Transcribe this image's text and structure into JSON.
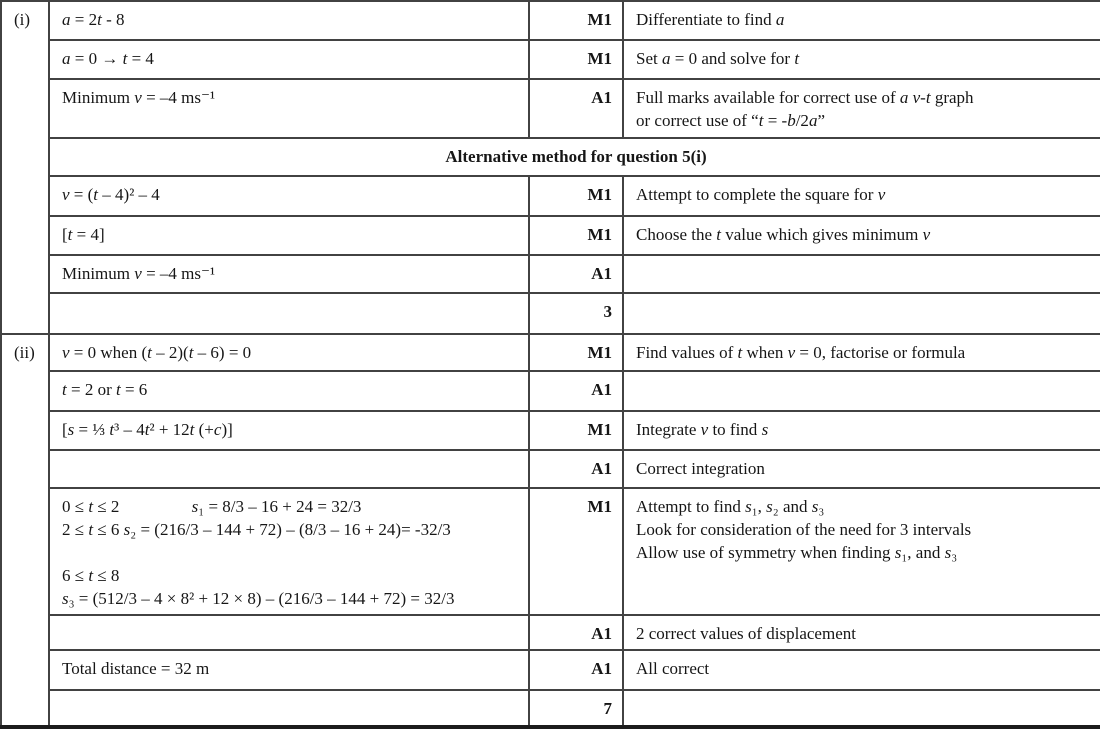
{
  "marking_table": {
    "part_label_i": "(i)",
    "part_label_ii": "(ii)",
    "alt_header": "Alternative method for question 5(i)",
    "part_i_rows": [
      {
        "work": "a = 2t - 8",
        "mark": "M1",
        "comment": "Differentiate to find a"
      },
      {
        "work": "a = 0 → t = 4",
        "mark": "M1",
        "comment": "Set a = 0 and solve for t"
      },
      {
        "work": "Minimum v = –4 ms⁻¹",
        "mark": "A1",
        "comment": "Full marks available for correct use of a v-t graph\nor correct use of “t = -b/2a”"
      }
    ],
    "alt_rows": [
      {
        "work": "v = (t – 4)² – 4",
        "mark": "M1",
        "comment": "Attempt to complete the square for v"
      },
      {
        "work": "[t = 4]",
        "mark": "M1",
        "comment": "Choose the t value which gives minimum v"
      },
      {
        "work": "Minimum v = –4 ms⁻¹",
        "mark": "A1",
        "comment": ""
      }
    ],
    "part_i_total": {
      "work": "",
      "mark": "3",
      "comment": ""
    },
    "part_ii_rows": [
      {
        "work": "v = 0 when (t – 2)(t – 6) = 0",
        "mark": "M1",
        "comment": "Find values of t when v = 0, factorise or formula"
      },
      {
        "work": "t = 2 or t = 6",
        "mark": "A1",
        "comment": ""
      },
      {
        "work": "[s = ⅓ t³ – 4t² + 12t (+c)]",
        "mark": "M1",
        "comment": "Integrate v to find s"
      },
      {
        "work": "",
        "mark": "A1",
        "comment": "Correct integration"
      },
      {
        "work": "0 ≤ t ≤ 2                 s₁ = 8/3 – 16 + 24 = 32/3\n2 ≤ t ≤ 6 s₂ = (216/3 – 144 + 72) – (8/3 – 16 + 24)= -32/3\n\n6 ≤ t ≤ 8\ns₃ = (512/3 – 4 × 8² + 12 × 8) – (216/3 – 144 + 72) = 32/3",
        "mark": "M1",
        "comment": "Attempt to find s₁, s₂ and s₃\nLook for consideration of the need for 3 intervals\nAllow use of symmetry when finding s₁, and s₃"
      },
      {
        "work": "",
        "mark": "A1",
        "comment": "2 correct values of displacement"
      },
      {
        "work": "Total distance = 32 m",
        "mark": "A1",
        "comment": "All correct"
      }
    ],
    "part_ii_total": {
      "work": "",
      "mark": "7",
      "comment": ""
    }
  }
}
